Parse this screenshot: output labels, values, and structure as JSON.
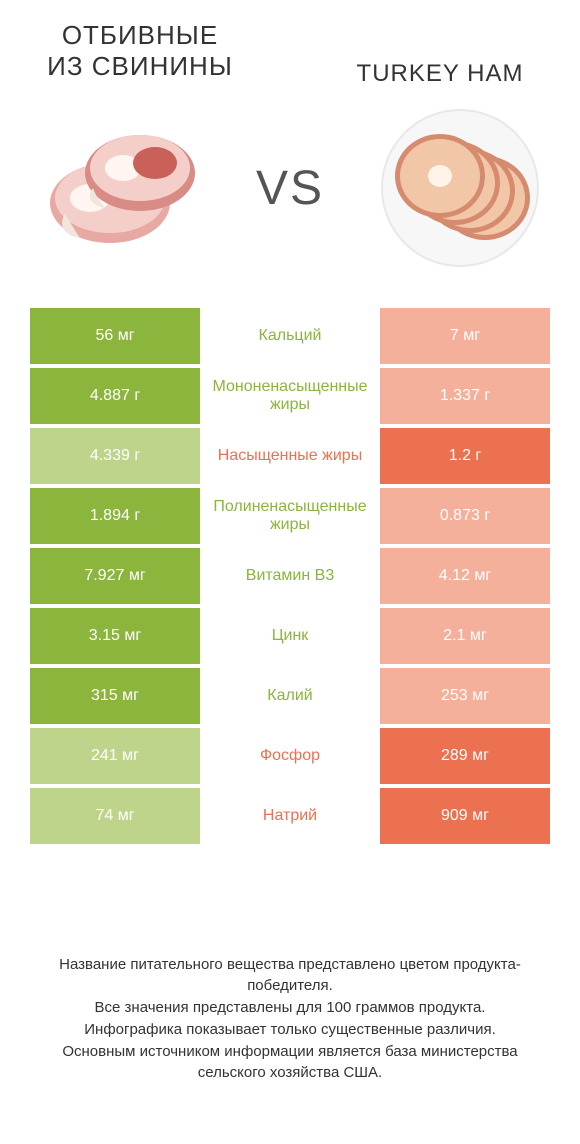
{
  "header": {
    "left_title": "ОТБИВНЫЕ ИЗ СВИНИНЫ",
    "right_title": "TURKEY HAM",
    "vs_label": "VS"
  },
  "colors": {
    "green_strong": "#8bb53c",
    "green_light": "#bdd48a",
    "coral_strong": "#eb7150",
    "coral_light": "#f5b09b",
    "background": "#ffffff",
    "text": "#333333"
  },
  "table": {
    "rows": [
      {
        "nutrient": "Кальций",
        "left": "56 мг",
        "right": "7 мг",
        "winner": "left"
      },
      {
        "nutrient": "Мононенасыщенные жиры",
        "left": "4.887 г",
        "right": "1.337 г",
        "winner": "left"
      },
      {
        "nutrient": "Насыщенные жиры",
        "left": "4.339 г",
        "right": "1.2 г",
        "winner": "right"
      },
      {
        "nutrient": "Полиненасыщенные жиры",
        "left": "1.894 г",
        "right": "0.873 г",
        "winner": "left"
      },
      {
        "nutrient": "Витамин B3",
        "left": "7.927 мг",
        "right": "4.12 мг",
        "winner": "left"
      },
      {
        "nutrient": "Цинк",
        "left": "3.15 мг",
        "right": "2.1 мг",
        "winner": "left"
      },
      {
        "nutrient": "Калий",
        "left": "315 мг",
        "right": "253 мг",
        "winner": "left"
      },
      {
        "nutrient": "Фосфор",
        "left": "241 мг",
        "right": "289 мг",
        "winner": "right"
      },
      {
        "nutrient": "Натрий",
        "left": "74 мг",
        "right": "909 мг",
        "winner": "right"
      }
    ]
  },
  "footnote": {
    "line1": "Название питательного вещества представлено цветом продукта-победителя.",
    "line2": "Все значения представлены для 100 граммов продукта.",
    "line3": "Инфографика показывает только существенные различия.",
    "line4": "Основным источником информации является база министерства сельского хозяйства США."
  }
}
